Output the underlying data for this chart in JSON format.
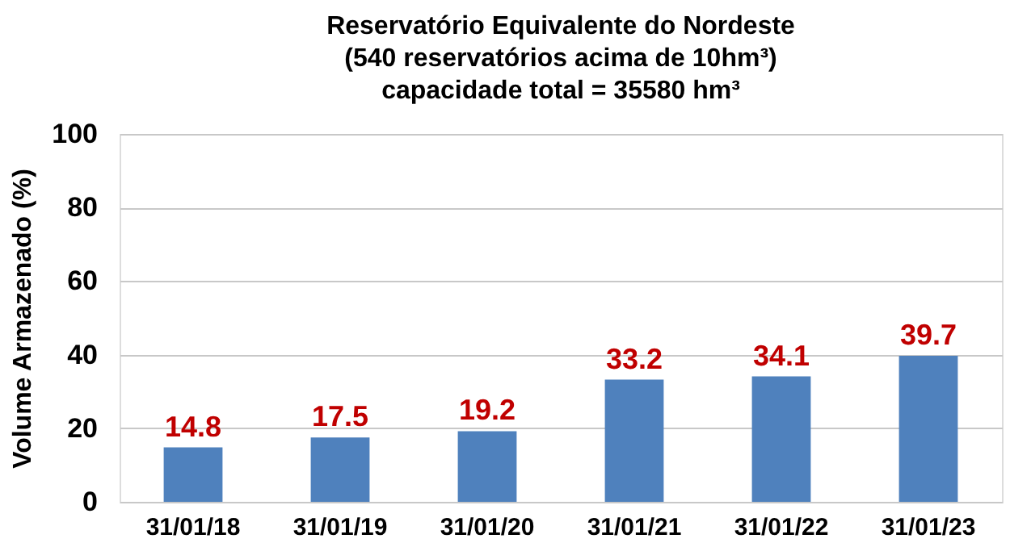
{
  "chart_data": {
    "type": "bar",
    "title": "Reservatório Equivalente do Nordeste\n(540 reservatórios acima de 10hm³)\ncapacidade total = 35580 hm³",
    "ylabel": "Volume Armazenado (%)",
    "categories": [
      "31/01/18",
      "31/01/19",
      "31/01/20",
      "31/01/21",
      "31/01/22",
      "31/01/23"
    ],
    "values": [
      14.8,
      17.5,
      19.2,
      33.2,
      34.1,
      39.7
    ],
    "color": "#4f81bd",
    "ylim": [
      0,
      100
    ],
    "yticks": [
      0,
      20,
      40,
      60,
      80,
      100
    ],
    "grid": "y",
    "data_labels": true
  }
}
